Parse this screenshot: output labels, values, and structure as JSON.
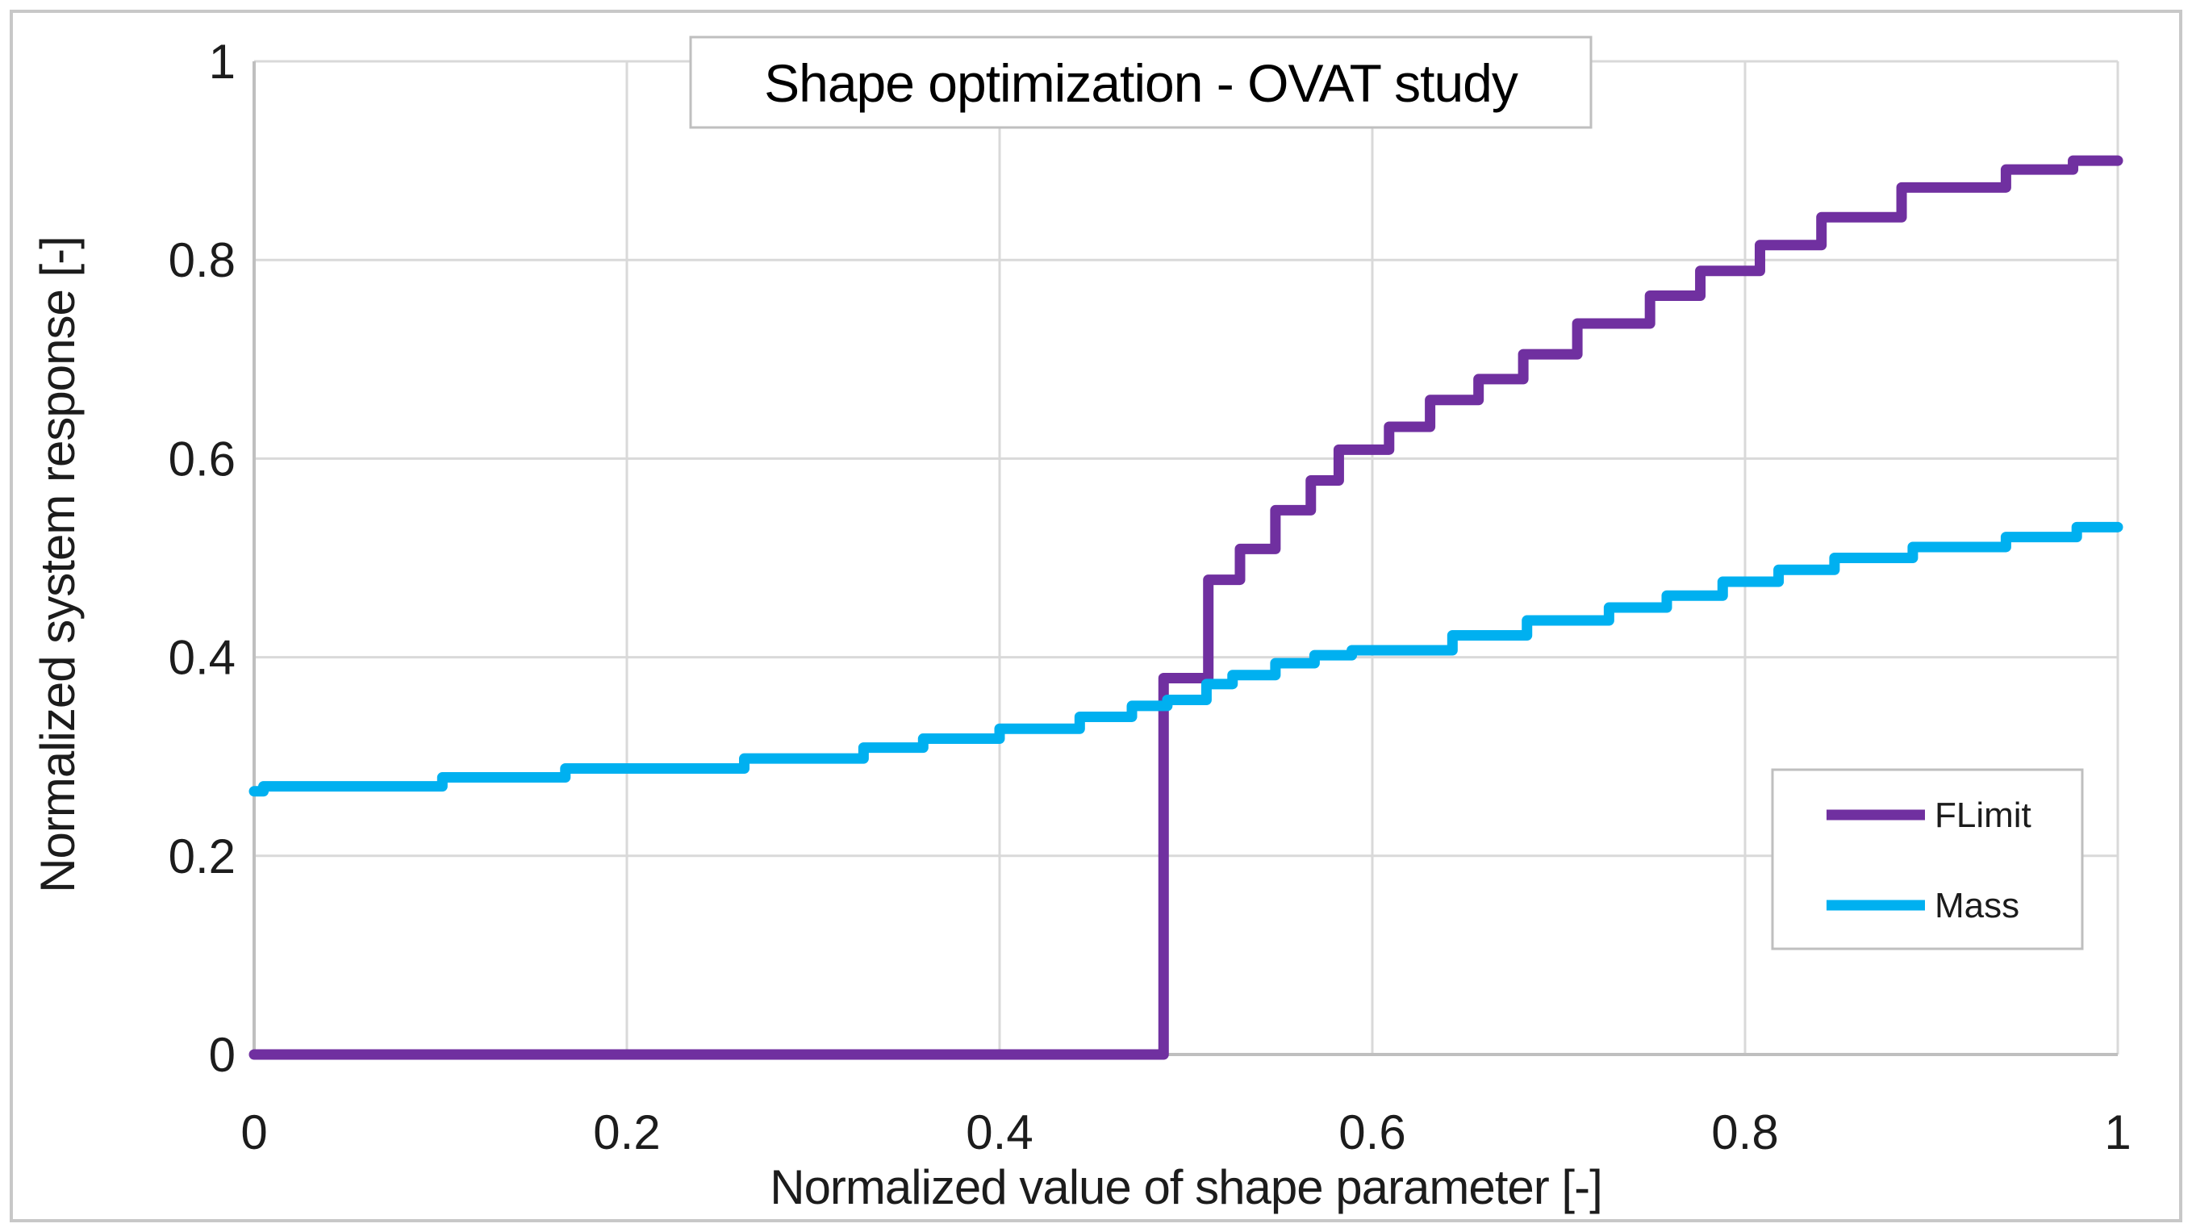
{
  "figure": {
    "background": "#ffffff",
    "border_color": "#c8c8c8"
  },
  "chart_data": {
    "type": "line",
    "line_style": "stepped",
    "title": "Shape optimization - OVAT study",
    "xlabel": "Normalized value of shape parameter [-]",
    "ylabel": "Normalized system response [-]",
    "xlim": [
      0,
      1
    ],
    "ylim": [
      0,
      1
    ],
    "grid": true,
    "gridline_color": "#d9d9d9",
    "axis_line_color": "#bfbfbf",
    "legend_position": "inside-lower-right",
    "x_ticks": [
      0,
      0.2,
      0.4,
      0.6,
      0.8,
      1
    ],
    "x_tick_labels": [
      "0",
      "0.2",
      "0.4",
      "0.6",
      "0.8",
      "1"
    ],
    "y_ticks": [
      0,
      0.2,
      0.4,
      0.6,
      0.8,
      1
    ],
    "y_tick_labels": [
      "0",
      "0.2",
      "0.4",
      "0.6",
      "0.8",
      "1"
    ],
    "series": [
      {
        "name": "FLimit",
        "color": "#7030a0",
        "points": [
          [
            0.0,
            0.0
          ],
          [
            0.488,
            0.379
          ],
          [
            0.512,
            0.478
          ],
          [
            0.529,
            0.509
          ],
          [
            0.548,
            0.548
          ],
          [
            0.567,
            0.578
          ],
          [
            0.582,
            0.609
          ],
          [
            0.609,
            0.632
          ],
          [
            0.631,
            0.659
          ],
          [
            0.657,
            0.68
          ],
          [
            0.681,
            0.705
          ],
          [
            0.71,
            0.736
          ],
          [
            0.749,
            0.764
          ],
          [
            0.776,
            0.789
          ],
          [
            0.808,
            0.815
          ],
          [
            0.841,
            0.843
          ],
          [
            0.884,
            0.873
          ],
          [
            0.94,
            0.891
          ],
          [
            0.976,
            0.9
          ]
        ]
      },
      {
        "name": "Mass",
        "color": "#00b0f0",
        "points": [
          [
            0.0,
            0.265
          ],
          [
            0.005,
            0.27
          ],
          [
            0.101,
            0.279
          ],
          [
            0.167,
            0.288
          ],
          [
            0.263,
            0.298
          ],
          [
            0.327,
            0.309
          ],
          [
            0.359,
            0.318
          ],
          [
            0.4,
            0.328
          ],
          [
            0.443,
            0.34
          ],
          [
            0.471,
            0.351
          ],
          [
            0.49,
            0.357
          ],
          [
            0.511,
            0.373
          ],
          [
            0.525,
            0.382
          ],
          [
            0.548,
            0.394
          ],
          [
            0.569,
            0.402
          ],
          [
            0.589,
            0.407
          ],
          [
            0.643,
            0.422
          ],
          [
            0.683,
            0.437
          ],
          [
            0.727,
            0.45
          ],
          [
            0.758,
            0.462
          ],
          [
            0.788,
            0.476
          ],
          [
            0.818,
            0.488
          ],
          [
            0.848,
            0.5
          ],
          [
            0.89,
            0.511
          ],
          [
            0.94,
            0.521
          ],
          [
            0.978,
            0.531
          ]
        ]
      }
    ]
  }
}
